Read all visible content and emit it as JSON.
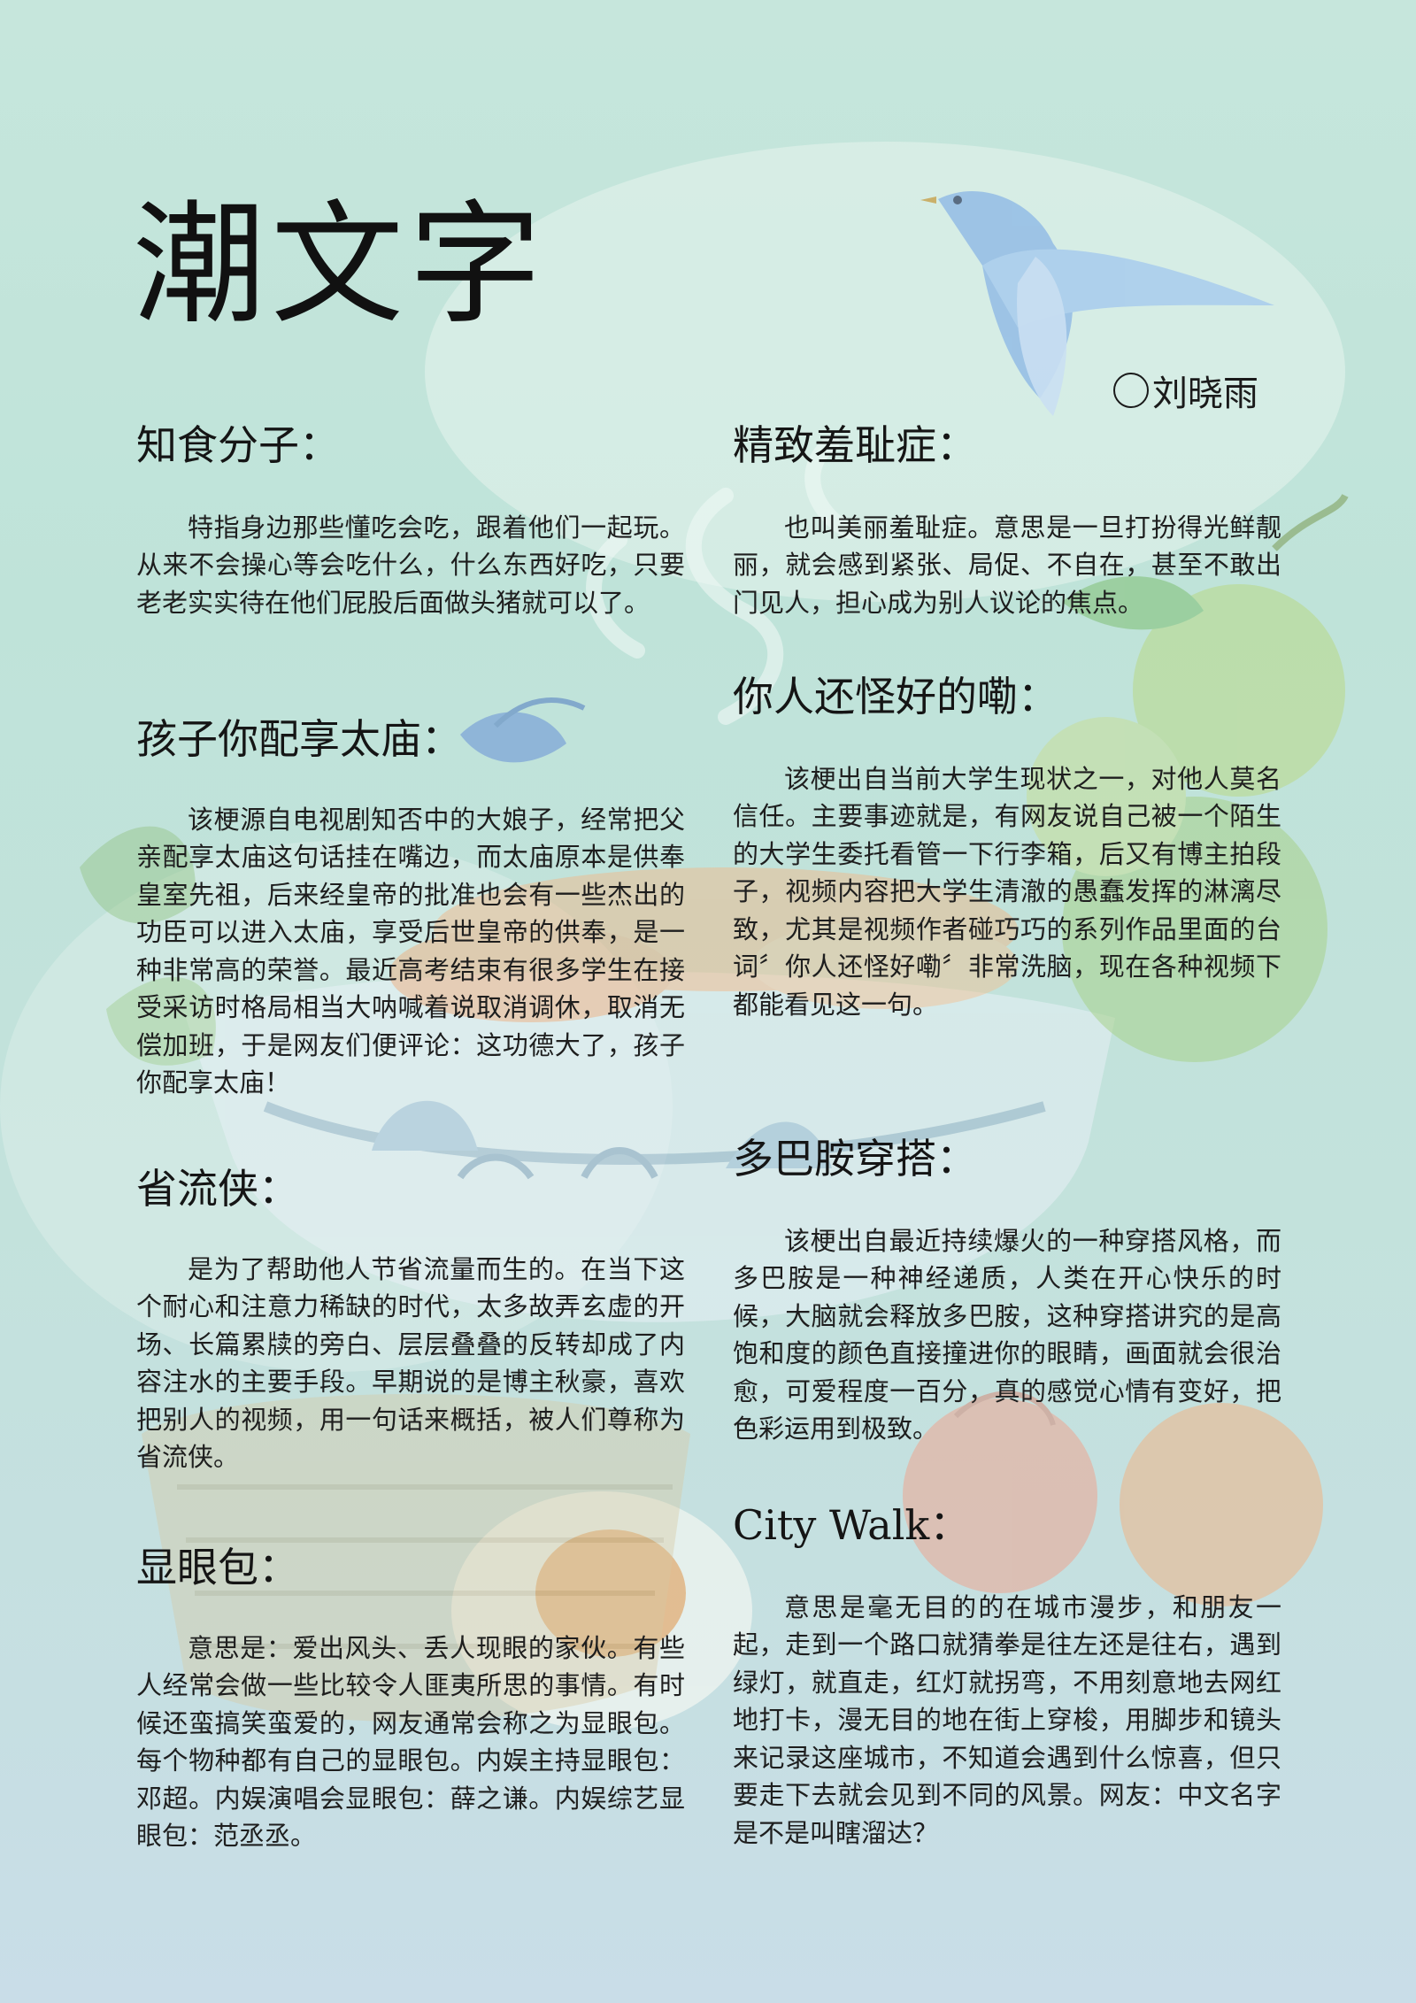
{
  "title": "潮文字",
  "author": "刘晓雨",
  "colors": {
    "background_top": "#c6e6dc",
    "background_bottom": "#c9dde8",
    "text": "#1a1a1a"
  },
  "articles_left": [
    {
      "heading": "知食分子：",
      "body": "特指身边那些懂吃会吃，跟着他们一起玩。从来不会操心等会吃什么，什么东西好吃，只要老老实实待在他们屁股后面做头猪就可以了。"
    },
    {
      "heading": "孩子你配享太庙：",
      "body": "该梗源自电视剧知否中的大娘子，经常把父亲配享太庙这句话挂在嘴边，而太庙原本是供奉皇室先祖，后来经皇帝的批准也会有一些杰出的功臣可以进入太庙，享受后世皇帝的供奉，是一种非常高的荣誉。最近高考结束有很多学生在接受采访时格局相当大呐喊着说取消调休，取消无偿加班，于是网友们便评论：这功德大了，孩子你配享太庙！"
    },
    {
      "heading": "省流侠：",
      "body": "是为了帮助他人节省流量而生的。在当下这个耐心和注意力稀缺的时代，太多故弄玄虚的开场、长篇累牍的旁白、层层叠叠的反转却成了内容注水的主要手段。早期说的是博主秋豪，喜欢把别人的视频，用一句话来概括，被人们尊称为省流侠。"
    },
    {
      "heading": "显眼包：",
      "body": "意思是：爱出风头、丢人现眼的家伙。有些人经常会做一些比较令人匪夷所思的事情。有时候还蛮搞笑蛮爱的，网友通常会称之为显眼包。每个物种都有自己的显眼包。内娱主持显眼包：邓超。内娱演唱会显眼包：薛之谦。内娱综艺显眼包：范丞丞。"
    }
  ],
  "articles_right": [
    {
      "heading": "精致羞耻症：",
      "body": "也叫美丽羞耻症。意思是一旦打扮得光鲜靓丽，就会感到紧张、局促、不自在，甚至不敢出门见人，担心成为别人议论的焦点。"
    },
    {
      "heading": "你人还怪好的嘞：",
      "body": "该梗出自当前大学生现状之一，对他人莫名信任。主要事迹就是，有网友说自己被一个陌生的大学生委托看管一下行李箱，后又有博主拍段子，视频内容把大学生清澈的愚蠢发挥的淋漓尽致，尤其是视频作者碰巧巧的系列作品里面的台词〞你人还怪好嘞〞非常洗脑，现在各种视频下都能看见这一句。"
    },
    {
      "heading": "多巴胺穿搭：",
      "body": "该梗出自最近持续爆火的一种穿搭风格，而多巴胺是一种神经递质，人类在开心快乐的时候，大脑就会释放多巴胺，这种穿搭讲究的是高饱和度的颜色直接撞进你的眼睛，画面就会很治愈，可爱程度一百分，真的感觉心情有变好，把色彩运用到极致。"
    },
    {
      "heading": "City Walk：",
      "body": "意思是毫无目的的在城市漫步，和朋友一起，走到一个路口就猜拳是往左还是往右，遇到绿灯，就直走，红灯就拐弯，不用刻意地去网红地打卡，漫无目的地在街上穿梭，用脚步和镜头来记录这座城市，不知道会遇到什么惊喜，但只要走下去就会见到不同的风景。网友：中文名字是不是叫瞎溜达？"
    }
  ]
}
